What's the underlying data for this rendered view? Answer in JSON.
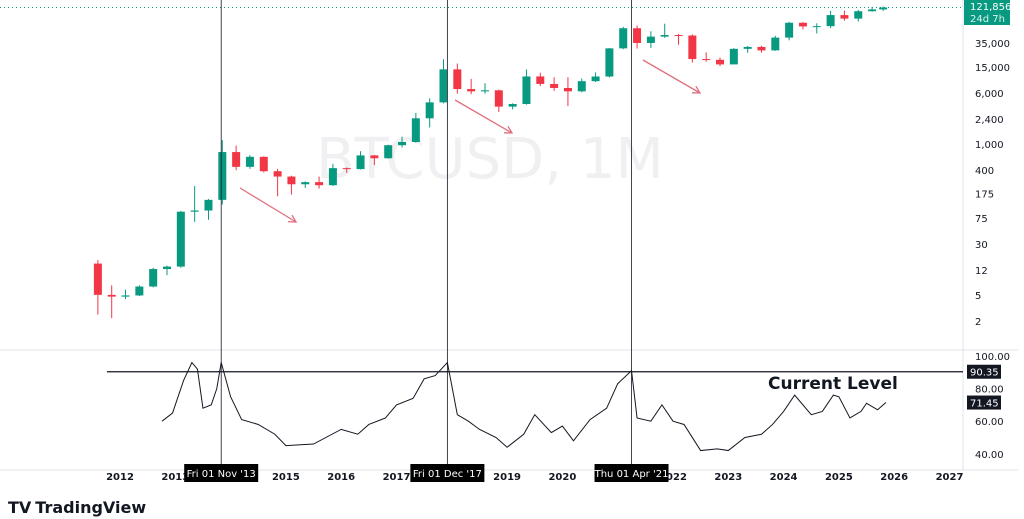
{
  "chart_data": {
    "type": "candlestick",
    "symbol_watermark": "BTCUSD, 1M",
    "price_axis": {
      "scale": "log",
      "ticks": [
        35000,
        15000,
        6000,
        2400,
        1000,
        400,
        175,
        75,
        30,
        12,
        5,
        2
      ],
      "tick_labels": [
        "35,000",
        "15,000",
        "6,000",
        "2,400",
        "1,000",
        "400",
        "175",
        "75",
        "30",
        "12",
        "5",
        "2"
      ]
    },
    "current_price": {
      "label": "121,856",
      "countdown": "24d 7h",
      "color": "#089981"
    },
    "x_ticks": [
      "2012",
      "2013",
      "2015",
      "2016",
      "2017",
      "2019",
      "2020",
      "2022",
      "2023",
      "2024",
      "2025",
      "2026",
      "2027"
    ],
    "x_tick_years": [
      2012,
      2013,
      2015,
      2016,
      2017,
      2019,
      2020,
      2022,
      2023,
      2024,
      2025,
      2026,
      2027
    ],
    "crosshair_dates": [
      {
        "label": "Fri 01 Nov '13",
        "t": 2013.83
      },
      {
        "label": "Fri 01 Dec '17",
        "t": 2017.92
      },
      {
        "label": "Thu 01 Apr '21",
        "t": 2021.25
      }
    ],
    "candles": [
      [
        2011.6,
        15,
        5,
        17,
        2.5
      ],
      [
        2011.85,
        5,
        4.7,
        7,
        2.2
      ],
      [
        2012.1,
        4.7,
        4.9,
        6,
        4.3
      ],
      [
        2012.35,
        4.9,
        6.7,
        7,
        4.8
      ],
      [
        2012.6,
        6.7,
        12.4,
        13,
        6.5
      ],
      [
        2012.85,
        12.4,
        13.5,
        14,
        10
      ],
      [
        2013.1,
        13.5,
        93,
        95,
        13
      ],
      [
        2013.35,
        93,
        97,
        230,
        65
      ],
      [
        2013.6,
        97,
        141,
        145,
        70
      ],
      [
        2013.85,
        141,
        757,
        1150,
        120
      ],
      [
        2014.1,
        757,
        450,
        950,
        400
      ],
      [
        2014.35,
        450,
        640,
        680,
        420
      ],
      [
        2014.6,
        640,
        386,
        650,
        370
      ],
      [
        2014.85,
        386,
        320,
        420,
        160
      ],
      [
        2015.1,
        320,
        244,
        330,
        170
      ],
      [
        2015.35,
        244,
        263,
        270,
        215
      ],
      [
        2015.6,
        263,
        236,
        320,
        210
      ],
      [
        2015.85,
        236,
        430,
        500,
        230
      ],
      [
        2016.1,
        430,
        416,
        440,
        365
      ],
      [
        2016.35,
        416,
        673,
        780,
        410
      ],
      [
        2016.6,
        673,
        609,
        680,
        480
      ],
      [
        2016.85,
        609,
        963,
        980,
        600
      ],
      [
        2017.1,
        963,
        1079,
        1300,
        890
      ],
      [
        2017.35,
        1079,
        2480,
        3000,
        1050
      ],
      [
        2017.6,
        2480,
        4340,
        5000,
        1800
      ],
      [
        2017.85,
        4340,
        13850,
        19800,
        4200
      ],
      [
        2018.1,
        13850,
        6930,
        17000,
        5900
      ],
      [
        2018.35,
        6930,
        6390,
        9900,
        5800
      ],
      [
        2018.6,
        6390,
        6630,
        8500,
        5900
      ],
      [
        2018.85,
        6630,
        3740,
        6800,
        3100
      ],
      [
        2019.1,
        3740,
        4100,
        4200,
        3400
      ],
      [
        2019.35,
        4100,
        10800,
        13800,
        4000
      ],
      [
        2019.6,
        10800,
        8300,
        12300,
        7700
      ],
      [
        2019.85,
        8300,
        7200,
        10500,
        6500
      ],
      [
        2020.1,
        7200,
        6400,
        10500,
        3800
      ],
      [
        2020.35,
        6400,
        9140,
        10000,
        6200
      ],
      [
        2020.6,
        9140,
        10780,
        12400,
        8900
      ],
      [
        2020.85,
        10780,
        28990,
        29300,
        10400
      ],
      [
        2021.1,
        28990,
        58800,
        61800,
        28100
      ],
      [
        2021.35,
        58800,
        35040,
        64800,
        28800
      ],
      [
        2021.6,
        35040,
        43800,
        52900,
        29300
      ],
      [
        2021.85,
        43800,
        46300,
        69000,
        42000
      ],
      [
        2022.1,
        46300,
        45500,
        48200,
        32900
      ],
      [
        2022.35,
        45500,
        19900,
        47400,
        17600
      ],
      [
        2022.6,
        19900,
        19400,
        25200,
        18200
      ],
      [
        2022.85,
        19400,
        16500,
        21000,
        15500
      ],
      [
        2023.1,
        16500,
        28500,
        29200,
        16500
      ],
      [
        2023.35,
        28500,
        30500,
        31400,
        24800
      ],
      [
        2023.6,
        30500,
        27000,
        31800,
        24900
      ],
      [
        2023.85,
        27000,
        42300,
        45000,
        26500
      ],
      [
        2024.1,
        42300,
        71300,
        73800,
        38500
      ],
      [
        2024.35,
        71300,
        62700,
        72800,
        56500
      ],
      [
        2024.6,
        62700,
        63300,
        70000,
        49000
      ],
      [
        2024.85,
        63300,
        93400,
        108300,
        58900
      ],
      [
        2025.1,
        93400,
        82500,
        109300,
        76500
      ],
      [
        2025.35,
        82500,
        107000,
        112000,
        74500
      ],
      [
        2025.6,
        107000,
        114000,
        124400,
        105000
      ],
      [
        2025.8,
        114000,
        121856,
        126000,
        108000
      ]
    ],
    "rsi": {
      "axis_ticks": [
        100,
        80,
        60,
        40
      ],
      "axis_labels": [
        "100.00",
        "80.00",
        "60.00",
        "40.00"
      ],
      "level": 90.35,
      "level_label": "90.35",
      "current": 71.45,
      "current_label": "71.45",
      "annotation": "Current Level",
      "points": [
        [
          2012.76,
          60
        ],
        [
          2012.95,
          65
        ],
        [
          2013.15,
          85
        ],
        [
          2013.3,
          96
        ],
        [
          2013.4,
          92
        ],
        [
          2013.5,
          68
        ],
        [
          2013.65,
          70
        ],
        [
          2013.75,
          80
        ],
        [
          2013.83,
          96
        ],
        [
          2014.0,
          75
        ],
        [
          2014.2,
          61
        ],
        [
          2014.5,
          58
        ],
        [
          2014.8,
          52
        ],
        [
          2015.0,
          45
        ],
        [
          2015.5,
          46
        ],
        [
          2016.0,
          55
        ],
        [
          2016.3,
          52
        ],
        [
          2016.5,
          58
        ],
        [
          2016.8,
          62
        ],
        [
          2017.0,
          70
        ],
        [
          2017.3,
          74
        ],
        [
          2017.5,
          86
        ],
        [
          2017.7,
          88
        ],
        [
          2017.92,
          96
        ],
        [
          2018.1,
          64
        ],
        [
          2018.3,
          60
        ],
        [
          2018.5,
          55
        ],
        [
          2018.8,
          50
        ],
        [
          2019.0,
          44
        ],
        [
          2019.3,
          52
        ],
        [
          2019.5,
          64
        ],
        [
          2019.8,
          53
        ],
        [
          2020.0,
          57
        ],
        [
          2020.2,
          48
        ],
        [
          2020.5,
          61
        ],
        [
          2020.8,
          68
        ],
        [
          2021.0,
          83
        ],
        [
          2021.25,
          91
        ],
        [
          2021.35,
          62
        ],
        [
          2021.6,
          60
        ],
        [
          2021.8,
          70
        ],
        [
          2022.0,
          60
        ],
        [
          2022.2,
          58
        ],
        [
          2022.5,
          42
        ],
        [
          2022.8,
          43
        ],
        [
          2023.0,
          42
        ],
        [
          2023.3,
          50
        ],
        [
          2023.6,
          52
        ],
        [
          2023.8,
          58
        ],
        [
          2024.0,
          66
        ],
        [
          2024.2,
          76
        ],
        [
          2024.5,
          64
        ],
        [
          2024.7,
          66
        ],
        [
          2024.9,
          76
        ],
        [
          2025.0,
          75
        ],
        [
          2025.2,
          62
        ],
        [
          2025.4,
          66
        ],
        [
          2025.5,
          71
        ],
        [
          2025.7,
          67
        ],
        [
          2025.85,
          71.45
        ]
      ]
    },
    "colors": {
      "up": "#089981",
      "down": "#f23645",
      "arrow": "#e0707f"
    }
  },
  "branding": {
    "logo_text": "TradingView"
  }
}
